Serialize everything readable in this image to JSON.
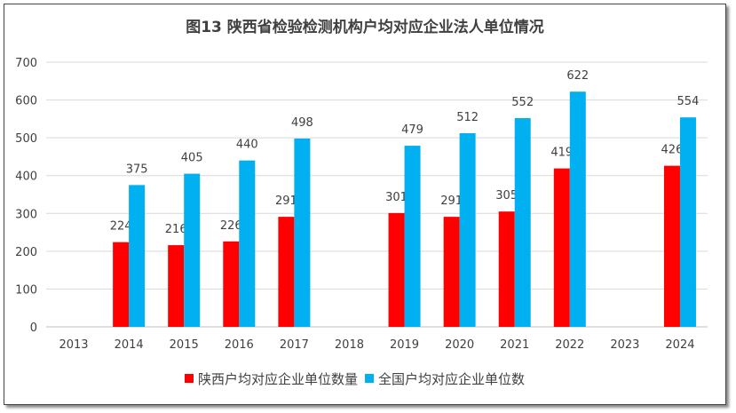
{
  "chart_data": {
    "type": "bar",
    "title": "图13  陕西省检验检测机构户均对应企业法人单位情况",
    "categories": [
      "2013",
      "2014",
      "2015",
      "2016",
      "2017",
      "2018",
      "2019",
      "2020",
      "2021",
      "2022",
      "2023",
      "2024"
    ],
    "series": [
      {
        "name": "陕西户均对应企业单位数量",
        "color": "#FF0000",
        "values": [
          null,
          224,
          216,
          226,
          291,
          null,
          301,
          291,
          305,
          419,
          null,
          426
        ]
      },
      {
        "name": "全国户均对应企业单位数",
        "color": "#00B0F0",
        "values": [
          null,
          375,
          405,
          440,
          498,
          null,
          479,
          512,
          552,
          622,
          null,
          554
        ]
      }
    ],
    "ylim": [
      0,
      700
    ],
    "yticks": [
      0,
      100,
      200,
      300,
      400,
      500,
      600,
      700
    ],
    "grid": true,
    "legend": "bottom",
    "data_labels": true
  }
}
